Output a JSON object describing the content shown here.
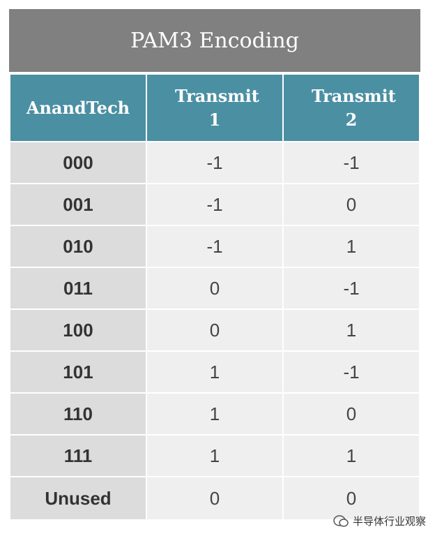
{
  "title": "PAM3 Encoding",
  "table": {
    "header": [
      "AnandTech",
      "Transmit 1",
      "Transmit 2"
    ],
    "rows": [
      [
        "000",
        "-1",
        "-1"
      ],
      [
        "001",
        "-1",
        "0"
      ],
      [
        "010",
        "-1",
        "1"
      ],
      [
        "011",
        "0",
        "-1"
      ],
      [
        "100",
        "0",
        "1"
      ],
      [
        "101",
        "1",
        "-1"
      ],
      [
        "110",
        "1",
        "0"
      ],
      [
        "111",
        "1",
        "1"
      ],
      [
        "Unused",
        "0",
        "0"
      ]
    ]
  },
  "watermark": "半导体行业观察"
}
